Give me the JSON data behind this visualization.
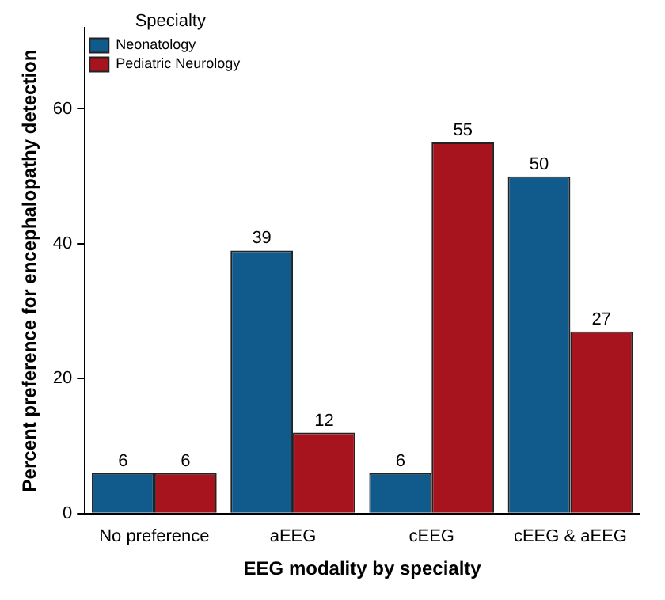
{
  "chart_data": {
    "type": "bar",
    "xlabel": "EEG modality by specialty",
    "ylabel": "Percent preference for encephalopathy detection",
    "categories": [
      "No preference",
      "aEEG",
      "cEEG",
      "cEEG & aEEG"
    ],
    "series": [
      {
        "name": "Neonatology",
        "color": "#115a8c",
        "values": [
          6,
          39,
          6,
          50
        ]
      },
      {
        "name": "Pediatric Neurology",
        "color": "#a8141e",
        "values": [
          6,
          12,
          55,
          27
        ]
      }
    ],
    "legend_title": "Specialty",
    "legend": "top left",
    "data_labels": true,
    "grid": false,
    "ylim": [
      0,
      72
    ],
    "yticks": [
      0,
      20,
      40,
      60
    ]
  }
}
